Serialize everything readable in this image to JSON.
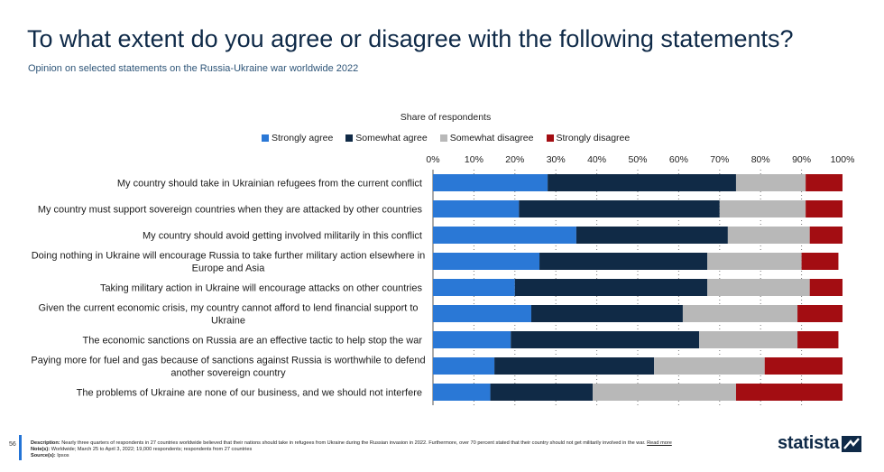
{
  "header": {
    "title": "To what extent do you agree or disagree with the following statements?",
    "subtitle": "Opinion on selected statements on the Russia-Ukraine war worldwide 2022"
  },
  "legend": {
    "title": "Share of respondents"
  },
  "colors": {
    "strongly_agree": "#2a78d6",
    "somewhat_agree": "#102a46",
    "somewhat_disagree": "#b8b8b8",
    "strongly_disagree": "#a30d12",
    "accent": "#2474d6"
  },
  "chart_data": {
    "type": "bar",
    "orientation": "horizontal",
    "stacked": true,
    "xlabel": "Share of respondents",
    "xlim": [
      0,
      100
    ],
    "x_ticks": [
      "0%",
      "10%",
      "20%",
      "30%",
      "40%",
      "50%",
      "60%",
      "70%",
      "80%",
      "90%",
      "100%"
    ],
    "grid": "vertical dotted",
    "legend_position": "top",
    "categories": [
      "My country should take in Ukrainian refugees from the current conflict",
      "My country must support sovereign countries when they are attacked by other countries",
      "My country should avoid getting involved militarily in this conflict",
      "Doing nothing in Ukraine will encourage Russia to take further military action elsewhere in Europe and Asia",
      "Taking military action in Ukraine will encourage attacks on other countries",
      "Given the current economic crisis, my country cannot afford to lend financial support to Ukraine",
      "The economic sanctions on Russia are an effective tactic to help stop the war",
      "Paying more for fuel and gas because of sanctions against Russia is worthwhile to defend another sovereign country",
      "The problems of Ukraine are none of our business, and we should not interfere"
    ],
    "category_lines": [
      [
        "My country should take in Ukrainian refugees from the current conflict"
      ],
      [
        "My country must support sovereign countries when they are attacked by other countries"
      ],
      [
        "My country should avoid getting involved militarily in this conflict"
      ],
      [
        "Doing nothing in Ukraine will encourage Russia to take further military action elsewhere in",
        "Europe and Asia"
      ],
      [
        "Taking military action in Ukraine will encourage attacks on other countries"
      ],
      [
        "Given the current economic crisis, my country cannot afford to lend financial support to",
        "Ukraine"
      ],
      [
        "The economic sanctions on Russia are an effective tactic to help stop the war"
      ],
      [
        "Paying more for fuel and gas because of sanctions against Russia is worthwhile to defend",
        "another sovereign country"
      ],
      [
        "The problems of Ukraine are none of our business, and we should not interfere"
      ]
    ],
    "series": [
      {
        "name": "Strongly agree",
        "values": [
          28,
          21,
          35,
          26,
          20,
          24,
          19,
          15,
          14
        ]
      },
      {
        "name": "Somewhat agree",
        "values": [
          46,
          49,
          37,
          41,
          47,
          37,
          46,
          39,
          25
        ]
      },
      {
        "name": "Somewhat disagree",
        "values": [
          17,
          21,
          20,
          23,
          25,
          28,
          24,
          27,
          35
        ]
      },
      {
        "name": "Strongly disagree",
        "values": [
          9,
          9,
          8,
          9,
          8,
          11,
          10,
          19,
          26
        ]
      }
    ]
  },
  "footer": {
    "page_number": "56",
    "description_label": "Description:",
    "description": "Nearly three quarters of respondents in 27 countries worldwide believed that their nations should take in refugees from Ukraine during the Russian invasion in 2022. Furthermore, over 70 percent stated that their country should not get militarily involved in the war.",
    "read_more": "Read more",
    "notes_label": "Note(s):",
    "notes": "Worldwide; March 25 to April 3, 2022; 19,000 respondents; respondents from 27 countries",
    "source_label": "Source(s):",
    "source": "Ipsos"
  },
  "logo": {
    "text": "statista"
  }
}
